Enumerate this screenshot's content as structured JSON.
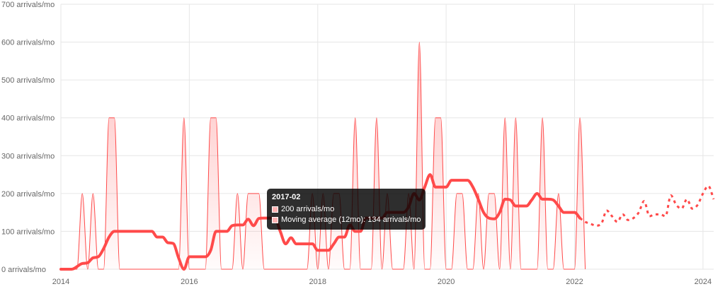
{
  "chart_data": {
    "type": "line",
    "title": "",
    "xlabel": "",
    "ylabel": "",
    "ylim": [
      0,
      700
    ],
    "xlim": [
      "2014-01",
      "2024-03"
    ],
    "y_ticks": [
      "0 arrivals/mo",
      "100 arrivals/mo",
      "200 arrivals/mo",
      "300 arrivals/mo",
      "400 arrivals/mo",
      "500 arrivals/mo",
      "600 arrivals/mo",
      "700 arrivals/mo"
    ],
    "x_ticks": [
      "2014",
      "2016",
      "2018",
      "2020",
      "2022",
      "2024"
    ],
    "grid": true,
    "legend": "none",
    "colors": {
      "series": "#ff4a4a",
      "fill": "#ffb3b3",
      "grid": "#e6e6e6"
    },
    "series": [
      {
        "values_by_month": [
          [
            "2014-01",
            0
          ],
          [
            "2014-02",
            0
          ],
          [
            "2014-03",
            0
          ],
          [
            "2014-04",
            0
          ],
          [
            "2014-05",
            200
          ],
          [
            "2014-06",
            0
          ],
          [
            "2014-07",
            200
          ],
          [
            "2014-08",
            0
          ],
          [
            "2014-09",
            0
          ],
          [
            "2014-10",
            400
          ],
          [
            "2014-11",
            400
          ],
          [
            "2014-12",
            0
          ],
          [
            "2015-01",
            0
          ],
          [
            "2015-02",
            0
          ],
          [
            "2015-03",
            0
          ],
          [
            "2015-04",
            0
          ],
          [
            "2015-05",
            0
          ],
          [
            "2015-06",
            0
          ],
          [
            "2015-07",
            0
          ],
          [
            "2015-08",
            0
          ],
          [
            "2015-09",
            0
          ],
          [
            "2015-10",
            0
          ],
          [
            "2015-11",
            0
          ],
          [
            "2015-12",
            400
          ],
          [
            "2016-01",
            0
          ],
          [
            "2016-02",
            0
          ],
          [
            "2016-03",
            0
          ],
          [
            "2016-04",
            0
          ],
          [
            "2016-05",
            400
          ],
          [
            "2016-06",
            400
          ],
          [
            "2016-07",
            0
          ],
          [
            "2016-08",
            0
          ],
          [
            "2016-09",
            0
          ],
          [
            "2016-10",
            200
          ],
          [
            "2016-11",
            0
          ],
          [
            "2016-12",
            200
          ],
          [
            "2017-01",
            200
          ],
          [
            "2017-02",
            200
          ],
          [
            "2017-03",
            0
          ],
          [
            "2017-04",
            0
          ],
          [
            "2017-05",
            0
          ],
          [
            "2017-06",
            0
          ],
          [
            "2017-07",
            0
          ],
          [
            "2017-08",
            0
          ],
          [
            "2017-09",
            0
          ],
          [
            "2017-10",
            0
          ],
          [
            "2017-11",
            0
          ],
          [
            "2017-12",
            200
          ],
          [
            "2018-01",
            0
          ],
          [
            "2018-02",
            200
          ],
          [
            "2018-03",
            0
          ],
          [
            "2018-04",
            200
          ],
          [
            "2018-05",
            200
          ],
          [
            "2018-06",
            0
          ],
          [
            "2018-07",
            0
          ],
          [
            "2018-08",
            400
          ],
          [
            "2018-09",
            0
          ],
          [
            "2018-10",
            0
          ],
          [
            "2018-11",
            0
          ],
          [
            "2018-12",
            400
          ],
          [
            "2019-01",
            0
          ],
          [
            "2019-02",
            200
          ],
          [
            "2019-03",
            0
          ],
          [
            "2019-04",
            0
          ],
          [
            "2019-05",
            0
          ],
          [
            "2019-06",
            200
          ],
          [
            "2019-07",
            0
          ],
          [
            "2019-08",
            600
          ],
          [
            "2019-09",
            0
          ],
          [
            "2019-10",
            0
          ],
          [
            "2019-11",
            400
          ],
          [
            "2019-12",
            400
          ],
          [
            "2020-01",
            0
          ],
          [
            "2020-02",
            0
          ],
          [
            "2020-03",
            200
          ],
          [
            "2020-04",
            200
          ],
          [
            "2020-05",
            0
          ],
          [
            "2020-06",
            0
          ],
          [
            "2020-07",
            200
          ],
          [
            "2020-08",
            0
          ],
          [
            "2020-09",
            200
          ],
          [
            "2020-10",
            200
          ],
          [
            "2020-11",
            0
          ],
          [
            "2020-12",
            400
          ],
          [
            "2021-01",
            0
          ],
          [
            "2021-02",
            400
          ],
          [
            "2021-03",
            0
          ],
          [
            "2021-04",
            0
          ],
          [
            "2021-05",
            0
          ],
          [
            "2021-06",
            0
          ],
          [
            "2021-07",
            400
          ],
          [
            "2021-08",
            0
          ],
          [
            "2021-09",
            0
          ],
          [
            "2021-10",
            200
          ],
          [
            "2021-11",
            0
          ],
          [
            "2021-12",
            0
          ],
          [
            "2022-01",
            0
          ],
          [
            "2022-02",
            400
          ],
          [
            "2022-03",
            0
          ]
        ]
      },
      {
        "name": "Moving average (12mo)",
        "values_by_month": [
          [
            "2014-01",
            0
          ],
          [
            "2014-03",
            0
          ],
          [
            "2014-05",
            15
          ],
          [
            "2014-06",
            17
          ],
          [
            "2014-07",
            30
          ],
          [
            "2014-08",
            33
          ],
          [
            "2014-09",
            55
          ],
          [
            "2014-10",
            85
          ],
          [
            "2014-11",
            100
          ],
          [
            "2014-12",
            100
          ],
          [
            "2015-03",
            100
          ],
          [
            "2015-06",
            100
          ],
          [
            "2015-07",
            85
          ],
          [
            "2015-08",
            85
          ],
          [
            "2015-09",
            70
          ],
          [
            "2015-10",
            68
          ],
          [
            "2015-11",
            30
          ],
          [
            "2015-12",
            0
          ],
          [
            "2016-01",
            33
          ],
          [
            "2016-02",
            33
          ],
          [
            "2016-03",
            33
          ],
          [
            "2016-04",
            33
          ],
          [
            "2016-05",
            50
          ],
          [
            "2016-06",
            100
          ],
          [
            "2016-07",
            100
          ],
          [
            "2016-08",
            100
          ],
          [
            "2016-09",
            115
          ],
          [
            "2016-10",
            117
          ],
          [
            "2016-11",
            117
          ],
          [
            "2016-12",
            132
          ],
          [
            "2017-01",
            115
          ],
          [
            "2017-02",
            134
          ],
          [
            "2017-03",
            135
          ],
          [
            "2017-04",
            135
          ],
          [
            "2017-05",
            135
          ],
          [
            "2017-06",
            100
          ],
          [
            "2017-07",
            67
          ],
          [
            "2017-08",
            83
          ],
          [
            "2017-09",
            67
          ],
          [
            "2017-10",
            67
          ],
          [
            "2017-11",
            67
          ],
          [
            "2017-12",
            67
          ],
          [
            "2018-01",
            50
          ],
          [
            "2018-02",
            50
          ],
          [
            "2018-03",
            50
          ],
          [
            "2018-04",
            67
          ],
          [
            "2018-05",
            85
          ],
          [
            "2018-06",
            85
          ],
          [
            "2018-07",
            117
          ],
          [
            "2018-08",
            100
          ],
          [
            "2018-09",
            100
          ],
          [
            "2018-10",
            135
          ],
          [
            "2018-11",
            135
          ],
          [
            "2018-12",
            135
          ],
          [
            "2019-01",
            135
          ],
          [
            "2019-02",
            150
          ],
          [
            "2019-03",
            150
          ],
          [
            "2019-04",
            150
          ],
          [
            "2019-05",
            150
          ],
          [
            "2019-06",
            165
          ],
          [
            "2019-07",
            200
          ],
          [
            "2019-08",
            183
          ],
          [
            "2019-09",
            217
          ],
          [
            "2019-10",
            250
          ],
          [
            "2019-11",
            217
          ],
          [
            "2019-12",
            217
          ],
          [
            "2020-01",
            217
          ],
          [
            "2020-02",
            235
          ],
          [
            "2020-03",
            235
          ],
          [
            "2020-04",
            235
          ],
          [
            "2020-05",
            235
          ],
          [
            "2020-06",
            217
          ],
          [
            "2020-07",
            185
          ],
          [
            "2020-08",
            150
          ],
          [
            "2020-09",
            135
          ],
          [
            "2020-10",
            133
          ],
          [
            "2020-11",
            150
          ],
          [
            "2020-12",
            185
          ],
          [
            "2021-01",
            183
          ],
          [
            "2021-02",
            167
          ],
          [
            "2021-03",
            167
          ],
          [
            "2021-04",
            167
          ],
          [
            "2021-05",
            183
          ],
          [
            "2021-06",
            200
          ],
          [
            "2021-07",
            185
          ],
          [
            "2021-08",
            185
          ],
          [
            "2021-09",
            183
          ],
          [
            "2021-10",
            167
          ],
          [
            "2021-11",
            150
          ],
          [
            "2021-12",
            150
          ],
          [
            "2022-01",
            150
          ],
          [
            "2022-02",
            135
          ]
        ]
      },
      {
        "values_by_month": [
          [
            "2022-02",
            135
          ],
          [
            "2022-03",
            125
          ],
          [
            "2022-04",
            120
          ],
          [
            "2022-05",
            115
          ],
          [
            "2022-06",
            120
          ],
          [
            "2022-07",
            155
          ],
          [
            "2022-08",
            140
          ],
          [
            "2022-09",
            125
          ],
          [
            "2022-10",
            145
          ],
          [
            "2022-11",
            130
          ],
          [
            "2022-12",
            135
          ],
          [
            "2023-01",
            150
          ],
          [
            "2023-02",
            180
          ],
          [
            "2023-03",
            140
          ],
          [
            "2023-04",
            145
          ],
          [
            "2023-05",
            145
          ],
          [
            "2023-06",
            140
          ],
          [
            "2023-07",
            195
          ],
          [
            "2023-08",
            170
          ],
          [
            "2023-09",
            160
          ],
          [
            "2023-10",
            185
          ],
          [
            "2023-11",
            160
          ],
          [
            "2023-12",
            170
          ],
          [
            "2024-01",
            200
          ],
          [
            "2024-02",
            220
          ],
          [
            "2024-03",
            185
          ]
        ]
      }
    ],
    "tooltip": {
      "title": "2017-02",
      "lines": [
        "200 arrivals/mo",
        "Moving average (12mo): 134 arrivals/mo"
      ]
    }
  }
}
